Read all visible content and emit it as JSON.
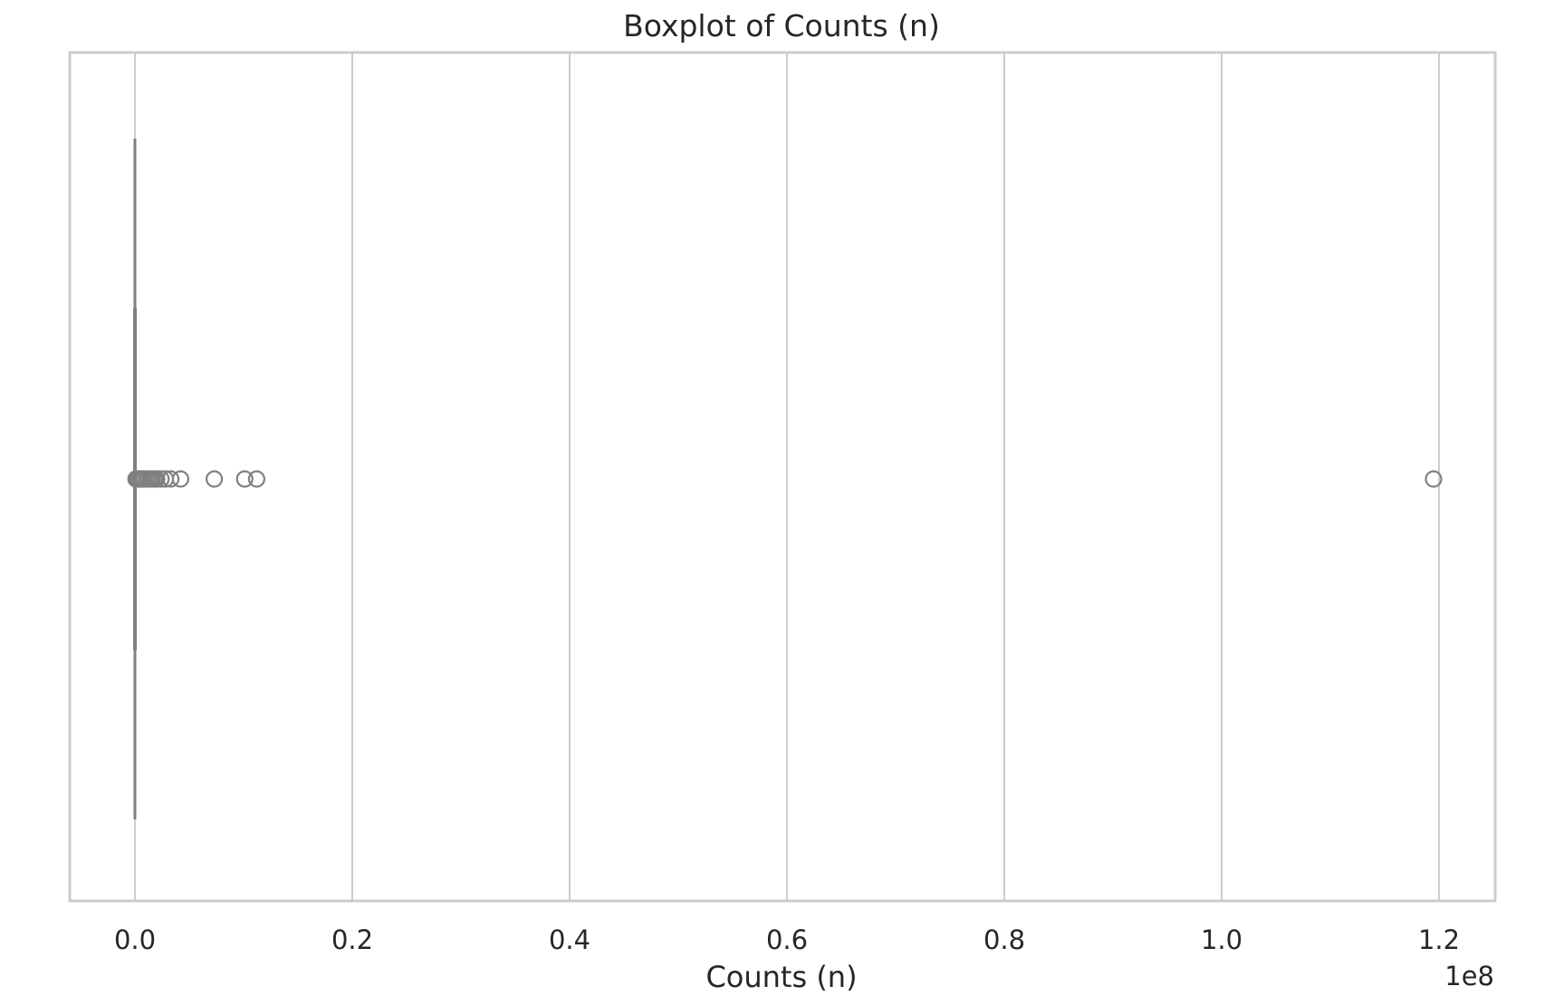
{
  "chart_data": {
    "type": "boxplot",
    "orientation": "horizontal",
    "title": "Boxplot of Counts (n)",
    "xlabel": "Counts (n)",
    "ylabel": "",
    "offset_label": "1e8",
    "xlim": [
      -0.12,
      2.51
    ],
    "xlim_unit_note_scale": "1e8",
    "x_ticks": [
      0.0,
      0.2,
      0.4,
      0.6,
      0.8,
      1.0,
      1.2
    ],
    "x_tick_labels": [
      "0.0",
      "0.2",
      "0.4",
      "0.6",
      "0.8",
      "1.0",
      "1.2"
    ],
    "grid": true,
    "box": {
      "min": 0.0,
      "q1": 0.0,
      "median": 0.0,
      "q3": 0.0,
      "max": 0.0
    },
    "outliers": [
      0.001,
      0.002,
      0.003,
      0.004,
      0.005,
      0.006,
      0.008,
      0.01,
      0.012,
      0.014,
      0.016,
      0.018,
      0.02,
      0.024,
      0.028,
      0.033,
      0.042,
      0.073,
      0.101,
      0.112,
      1.195
    ],
    "colors": {
      "box": "#808080",
      "grid": "#cccccc",
      "frame": "#cccccc",
      "text": "#262626"
    }
  }
}
